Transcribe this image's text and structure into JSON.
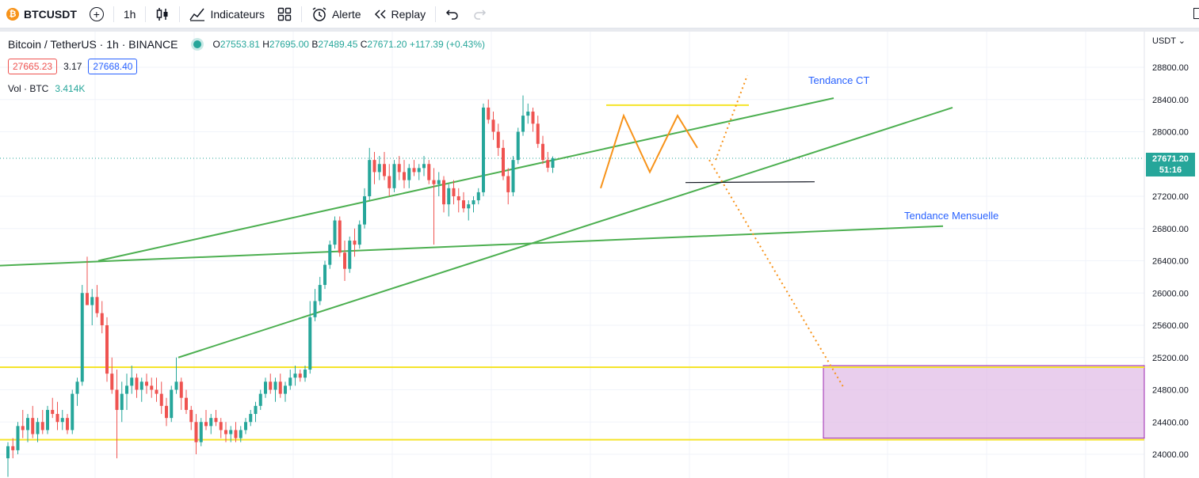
{
  "toolbar": {
    "symbol": "BTCUSDT",
    "interval": "1h",
    "indicators_label": "Indicateurs",
    "alert_label": "Alerte",
    "replay_label": "Replay"
  },
  "legend": {
    "title": "Bitcoin / TetherUS · 1h · BINANCE",
    "open_label": "O",
    "open": "27553.81",
    "high_label": "H",
    "high": "27695.00",
    "low_label": "B",
    "low": "27489.45",
    "close_label": "C",
    "close": "27671.20",
    "change": "+117.39 (+0.43%)"
  },
  "quote": {
    "bid": "27665.23",
    "spread": "3.17",
    "ask": "27668.40"
  },
  "volume": {
    "label": "Vol · BTC",
    "value": "3.414K"
  },
  "price_axis": {
    "currency": "USDT",
    "labels": [
      "28800.00",
      "28400.00",
      "28000.00",
      "27200.00",
      "26800.00",
      "26400.00",
      "26000.00",
      "25600.00",
      "25200.00",
      "24800.00",
      "24400.00",
      "24000.00"
    ],
    "last_price": "27671.20",
    "countdown": "51:16"
  },
  "annotations": {
    "short_trend": "Tendance CT",
    "monthly_trend": "Tendance Mensuelle"
  },
  "colors": {
    "up": "#26a69a",
    "down": "#ef5350",
    "trendline": "#4caf50",
    "level": "#f5e42a",
    "zone": "#e1bee7",
    "projection": "#f7931a"
  },
  "chart_data": {
    "type": "candlestick",
    "symbol": "BTCUSDT",
    "interval": "1h",
    "ylim": [
      23700,
      29200
    ],
    "last_price": 27671.2,
    "candles": [
      [
        23950,
        24150,
        23720,
        24100
      ],
      [
        24100,
        24200,
        23950,
        24050
      ],
      [
        24050,
        24400,
        24000,
        24350
      ],
      [
        24350,
        24550,
        24200,
        24300
      ],
      [
        24300,
        24500,
        24150,
        24450
      ],
      [
        24450,
        24600,
        24200,
        24250
      ],
      [
        24250,
        24450,
        24150,
        24400
      ],
      [
        24400,
        24550,
        24250,
        24300
      ],
      [
        24300,
        24600,
        24250,
        24550
      ],
      [
        24550,
        24700,
        24450,
        24500
      ],
      [
        24500,
        24650,
        24300,
        24400
      ],
      [
        24400,
        24550,
        24300,
        24450
      ],
      [
        24450,
        24500,
        24250,
        24300
      ],
      [
        24300,
        24800,
        24250,
        24750
      ],
      [
        24750,
        24950,
        24600,
        24900
      ],
      [
        24900,
        26100,
        24850,
        26000
      ],
      [
        26000,
        26450,
        25900,
        25850
      ],
      [
        25850,
        26050,
        25600,
        25950
      ],
      [
        25950,
        26100,
        25700,
        25750
      ],
      [
        25750,
        25900,
        25500,
        25600
      ],
      [
        25600,
        25700,
        24900,
        25000
      ],
      [
        25000,
        25200,
        24750,
        24800
      ],
      [
        24800,
        25050,
        23950,
        24550
      ],
      [
        24550,
        24900,
        24400,
        24750
      ],
      [
        24750,
        25000,
        24550,
        24850
      ],
      [
        24850,
        25100,
        24750,
        24950
      ],
      [
        24950,
        25000,
        24700,
        24800
      ],
      [
        24800,
        24950,
        24650,
        24900
      ],
      [
        24900,
        25000,
        24750,
        24850
      ],
      [
        24850,
        24950,
        24700,
        24800
      ],
      [
        24800,
        24950,
        24650,
        24750
      ],
      [
        24750,
        24900,
        24500,
        24600
      ],
      [
        24600,
        24700,
        24350,
        24450
      ],
      [
        24450,
        24850,
        24400,
        24800
      ],
      [
        24800,
        25200,
        24750,
        24900
      ],
      [
        24900,
        24950,
        24550,
        24700
      ],
      [
        24700,
        24800,
        24500,
        24550
      ],
      [
        24550,
        24600,
        24300,
        24400
      ],
      [
        24400,
        24500,
        24000,
        24150
      ],
      [
        24150,
        24450,
        24100,
        24400
      ],
      [
        24400,
        24550,
        24300,
        24350
      ],
      [
        24350,
        24500,
        24250,
        24450
      ],
      [
        24450,
        24550,
        24350,
        24400
      ],
      [
        24400,
        24450,
        24200,
        24300
      ],
      [
        24300,
        24400,
        24150,
        24250
      ],
      [
        24250,
        24350,
        24150,
        24300
      ],
      [
        24300,
        24400,
        24150,
        24200
      ],
      [
        24200,
        24350,
        24150,
        24300
      ],
      [
        24300,
        24450,
        24250,
        24400
      ],
      [
        24400,
        24550,
        24350,
        24500
      ],
      [
        24500,
        24650,
        24400,
        24600
      ],
      [
        24600,
        24800,
        24550,
        24750
      ],
      [
        24750,
        24950,
        24700,
        24900
      ],
      [
        24900,
        25000,
        24750,
        24800
      ],
      [
        24800,
        24950,
        24650,
        24900
      ],
      [
        24900,
        25000,
        24700,
        24750
      ],
      [
        24750,
        24900,
        24650,
        24850
      ],
      [
        24850,
        25050,
        24800,
        24950
      ],
      [
        24950,
        25100,
        24850,
        25000
      ],
      [
        25000,
        25050,
        24900,
        24950
      ],
      [
        24950,
        25100,
        24900,
        25050
      ],
      [
        25050,
        25900,
        25000,
        25700
      ],
      [
        25700,
        26050,
        25650,
        25900
      ],
      [
        25900,
        26200,
        25850,
        26100
      ],
      [
        26100,
        26400,
        26050,
        26350
      ],
      [
        26350,
        26650,
        26300,
        26600
      ],
      [
        26600,
        26950,
        26550,
        26900
      ],
      [
        26900,
        26950,
        26450,
        26500
      ],
      [
        26500,
        26650,
        26150,
        26300
      ],
      [
        26300,
        26700,
        26250,
        26650
      ],
      [
        26650,
        26800,
        26450,
        26600
      ],
      [
        26600,
        26900,
        26550,
        26850
      ],
      [
        26850,
        27300,
        26800,
        27200
      ],
      [
        27200,
        27800,
        27150,
        27650
      ],
      [
        27650,
        27750,
        27350,
        27500
      ],
      [
        27500,
        27700,
        27400,
        27600
      ],
      [
        27600,
        27750,
        27400,
        27450
      ],
      [
        27450,
        27600,
        27200,
        27300
      ],
      [
        27300,
        27650,
        27250,
        27600
      ],
      [
        27600,
        27700,
        27400,
        27500
      ],
      [
        27500,
        27650,
        27300,
        27400
      ],
      [
        27400,
        27600,
        27300,
        27550
      ],
      [
        27550,
        27650,
        27450,
        27500
      ],
      [
        27500,
        27600,
        27400,
        27550
      ],
      [
        27550,
        27700,
        27450,
        27600
      ],
      [
        27600,
        27650,
        27350,
        27400
      ],
      [
        27400,
        27550,
        26600,
        27350
      ],
      [
        27350,
        27500,
        27200,
        27400
      ],
      [
        27400,
        27450,
        27000,
        27100
      ],
      [
        27100,
        27350,
        26950,
        27300
      ],
      [
        27300,
        27400,
        27100,
        27200
      ],
      [
        27200,
        27300,
        27000,
        27150
      ],
      [
        27150,
        27250,
        27000,
        27050
      ],
      [
        27050,
        27150,
        26900,
        27100
      ],
      [
        27100,
        27200,
        27000,
        27150
      ],
      [
        27150,
        27300,
        27100,
        27250
      ],
      [
        27250,
        28350,
        27200,
        28300
      ],
      [
        28300,
        28400,
        28100,
        28150
      ],
      [
        28150,
        28250,
        27900,
        28000
      ],
      [
        28000,
        28100,
        27700,
        27800
      ],
      [
        27800,
        27900,
        27400,
        27450
      ],
      [
        27450,
        27550,
        27100,
        27250
      ],
      [
        27250,
        27700,
        27200,
        27650
      ],
      [
        27650,
        28050,
        27600,
        28000
      ],
      [
        28000,
        28450,
        27950,
        28200
      ],
      [
        28200,
        28350,
        28100,
        28250
      ],
      [
        28250,
        28300,
        28000,
        28100
      ],
      [
        28100,
        28200,
        27800,
        27850
      ],
      [
        27850,
        27950,
        27600,
        27650
      ],
      [
        27650,
        27750,
        27500,
        27553.81
      ],
      [
        27553.81,
        27695,
        27489.45,
        27671.2
      ]
    ]
  }
}
